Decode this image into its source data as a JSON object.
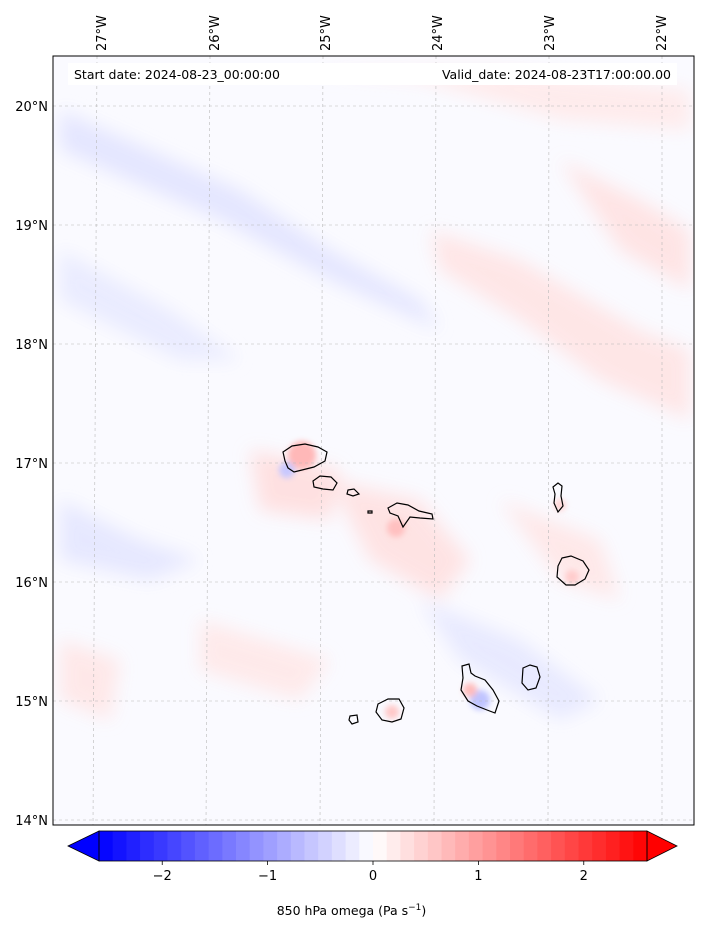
{
  "map": {
    "start_date": "Start date: 2024-08-23_00:00:00",
    "valid_date": "Valid_date: 2024-08-23T17:00:00.00",
    "longitude_labels": [
      "27°W",
      "26°W",
      "25°W",
      "24°W",
      "23°W",
      "22°W"
    ],
    "latitude_labels": [
      "20°N",
      "19°N",
      "18°N",
      "17°N",
      "16°N",
      "15°N",
      "14°N"
    ],
    "gridlines": true,
    "gridline_style": "dashed grey",
    "islands": [
      "Santo Antão",
      "São Vicente",
      "Santa Luzia",
      "Branco",
      "São Nicolau",
      "Sal",
      "Boa Vista",
      "Brava",
      "Fogo",
      "Santiago",
      "Maio"
    ],
    "colormap": "bwr",
    "colors": {
      "negative": "#0000ff",
      "zero": "#ffffff",
      "positive": "#ff0000",
      "coastline": "#000000",
      "grid": "#b0b0b0"
    }
  },
  "colorbar": {
    "ticks": [
      "−2",
      "−1",
      "0",
      "1",
      "2"
    ],
    "tick_values": [
      -2,
      -1,
      0,
      1,
      2
    ],
    "range": [
      -2.6,
      2.6
    ],
    "extend": "both",
    "label_main": "850 hPa omega (Pa s",
    "label_exp": "−1",
    "label_end": ")"
  }
}
